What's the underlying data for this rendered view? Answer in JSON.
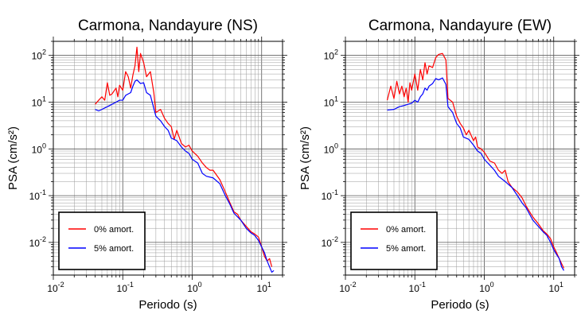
{
  "chart_data": [
    {
      "type": "line",
      "title": "Carmona, Nandayure (NS)",
      "xlabel": "Periodo (s)",
      "ylabel": "PSA (cm/s²)",
      "xscale": "log",
      "yscale": "log",
      "xlim": [
        0.01,
        20
      ],
      "ylim": [
        0.002,
        200
      ],
      "x_ticks": [
        {
          "base": "10",
          "exp": "-2"
        },
        {
          "base": "10",
          "exp": "-1"
        },
        {
          "base": "10",
          "exp": "0"
        },
        {
          "base": "10",
          "exp": "1"
        }
      ],
      "y_ticks": [
        {
          "base": "10",
          "exp": "-2"
        },
        {
          "base": "10",
          "exp": "-1"
        },
        {
          "base": "10",
          "exp": "0"
        },
        {
          "base": "10",
          "exp": "1"
        },
        {
          "base": "10",
          "exp": "2"
        }
      ],
      "grid": true,
      "legend_position": "bottom-left",
      "series": [
        {
          "name": "0% amort.",
          "color": "#ff0000",
          "points": [
            [
              0.04,
              9
            ],
            [
              0.045,
              11
            ],
            [
              0.05,
              13
            ],
            [
              0.055,
              11
            ],
            [
              0.06,
              26
            ],
            [
              0.065,
              14
            ],
            [
              0.07,
              15
            ],
            [
              0.08,
              20
            ],
            [
              0.085,
              13
            ],
            [
              0.09,
              23
            ],
            [
              0.1,
              18
            ],
            [
              0.11,
              45
            ],
            [
              0.12,
              35
            ],
            [
              0.13,
              20
            ],
            [
              0.14,
              38
            ],
            [
              0.15,
              60
            ],
            [
              0.16,
              150
            ],
            [
              0.17,
              45
            ],
            [
              0.18,
              110
            ],
            [
              0.2,
              70
            ],
            [
              0.22,
              35
            ],
            [
              0.25,
              45
            ],
            [
              0.28,
              16
            ],
            [
              0.3,
              6
            ],
            [
              0.35,
              7
            ],
            [
              0.4,
              4.5
            ],
            [
              0.45,
              3.5
            ],
            [
              0.5,
              3
            ],
            [
              0.55,
              1.6
            ],
            [
              0.6,
              2.5
            ],
            [
              0.7,
              1.3
            ],
            [
              0.8,
              1.1
            ],
            [
              0.9,
              1.2
            ],
            [
              1,
              0.9
            ],
            [
              1.2,
              0.7
            ],
            [
              1.4,
              0.5
            ],
            [
              1.6,
              0.4
            ],
            [
              1.8,
              0.35
            ],
            [
              2,
              0.35
            ],
            [
              2.5,
              0.22
            ],
            [
              3,
              0.12
            ],
            [
              3.5,
              0.07
            ],
            [
              4,
              0.045
            ],
            [
              4.5,
              0.04
            ],
            [
              5,
              0.03
            ],
            [
              6,
              0.022
            ],
            [
              7,
              0.017
            ],
            [
              8,
              0.015
            ],
            [
              9,
              0.013
            ],
            [
              10,
              0.008
            ],
            [
              11,
              0.005
            ],
            [
              12,
              0.004
            ],
            [
              13,
              0.0045
            ],
            [
              14,
              0.003
            ]
          ]
        },
        {
          "name": "5% amort.",
          "color": "#0000ff",
          "points": [
            [
              0.04,
              7
            ],
            [
              0.045,
              6.5
            ],
            [
              0.05,
              7
            ],
            [
              0.06,
              8
            ],
            [
              0.07,
              9
            ],
            [
              0.08,
              10
            ],
            [
              0.09,
              11
            ],
            [
              0.1,
              11
            ],
            [
              0.11,
              14
            ],
            [
              0.12,
              15
            ],
            [
              0.13,
              16
            ],
            [
              0.14,
              22
            ],
            [
              0.15,
              28
            ],
            [
              0.16,
              30
            ],
            [
              0.18,
              25
            ],
            [
              0.2,
              26
            ],
            [
              0.22,
              16
            ],
            [
              0.25,
              14
            ],
            [
              0.3,
              5
            ],
            [
              0.35,
              4
            ],
            [
              0.4,
              3
            ],
            [
              0.45,
              2.5
            ],
            [
              0.5,
              1.7
            ],
            [
              0.6,
              1.5
            ],
            [
              0.7,
              1.1
            ],
            [
              0.8,
              0.9
            ],
            [
              0.9,
              0.8
            ],
            [
              1,
              0.6
            ],
            [
              1.2,
              0.5
            ],
            [
              1.4,
              0.3
            ],
            [
              1.6,
              0.26
            ],
            [
              2,
              0.24
            ],
            [
              2.5,
              0.18
            ],
            [
              3,
              0.1
            ],
            [
              3.5,
              0.065
            ],
            [
              4,
              0.042
            ],
            [
              5,
              0.03
            ],
            [
              6,
              0.02
            ],
            [
              7,
              0.016
            ],
            [
              8,
              0.014
            ],
            [
              9,
              0.011
            ],
            [
              10,
              0.008
            ],
            [
              11,
              0.006
            ],
            [
              12,
              0.004
            ],
            [
              13,
              0.003
            ],
            [
              14,
              0.0023
            ],
            [
              15,
              0.0025
            ]
          ]
        }
      ]
    },
    {
      "type": "line",
      "title": "Carmona, Nandayure (EW)",
      "xlabel": "Periodo (s)",
      "ylabel": "PSA (cm/s²)",
      "xscale": "log",
      "yscale": "log",
      "xlim": [
        0.01,
        20
      ],
      "ylim": [
        0.002,
        200
      ],
      "x_ticks": [
        {
          "base": "10",
          "exp": "-2"
        },
        {
          "base": "10",
          "exp": "-1"
        },
        {
          "base": "10",
          "exp": "0"
        },
        {
          "base": "10",
          "exp": "1"
        }
      ],
      "y_ticks": [
        {
          "base": "10",
          "exp": "-2"
        },
        {
          "base": "10",
          "exp": "-1"
        },
        {
          "base": "10",
          "exp": "0"
        },
        {
          "base": "10",
          "exp": "1"
        },
        {
          "base": "10",
          "exp": "2"
        }
      ],
      "grid": true,
      "legend_position": "bottom-left",
      "series": [
        {
          "name": "0% amort.",
          "color": "#ff0000",
          "points": [
            [
              0.04,
              11
            ],
            [
              0.045,
              22
            ],
            [
              0.05,
              12
            ],
            [
              0.055,
              28
            ],
            [
              0.06,
              15
            ],
            [
              0.065,
              22
            ],
            [
              0.07,
              13
            ],
            [
              0.075,
              20
            ],
            [
              0.08,
              10
            ],
            [
              0.085,
              26
            ],
            [
              0.09,
              18
            ],
            [
              0.1,
              40
            ],
            [
              0.11,
              18
            ],
            [
              0.12,
              50
            ],
            [
              0.13,
              30
            ],
            [
              0.14,
              70
            ],
            [
              0.15,
              40
            ],
            [
              0.16,
              60
            ],
            [
              0.18,
              55
            ],
            [
              0.2,
              90
            ],
            [
              0.22,
              105
            ],
            [
              0.25,
              110
            ],
            [
              0.28,
              80
            ],
            [
              0.3,
              12
            ],
            [
              0.35,
              10
            ],
            [
              0.4,
              5
            ],
            [
              0.45,
              3.5
            ],
            [
              0.5,
              2.8
            ],
            [
              0.55,
              2
            ],
            [
              0.6,
              2.5
            ],
            [
              0.7,
              1.5
            ],
            [
              0.75,
              1.8
            ],
            [
              0.8,
              1.1
            ],
            [
              0.9,
              1
            ],
            [
              1,
              0.85
            ],
            [
              1.2,
              0.55
            ],
            [
              1.4,
              0.5
            ],
            [
              1.6,
              0.35
            ],
            [
              1.8,
              0.3
            ],
            [
              2,
              0.35
            ],
            [
              2.2,
              0.2
            ],
            [
              2.5,
              0.15
            ],
            [
              3,
              0.12
            ],
            [
              3.5,
              0.09
            ],
            [
              4,
              0.06
            ],
            [
              5,
              0.035
            ],
            [
              6,
              0.025
            ],
            [
              7,
              0.018
            ],
            [
              8,
              0.015
            ],
            [
              9,
              0.012
            ],
            [
              10,
              0.008
            ],
            [
              11,
              0.006
            ],
            [
              12,
              0.0045
            ],
            [
              13,
              0.0035
            ],
            [
              14,
              0.0028
            ]
          ]
        },
        {
          "name": "5% amort.",
          "color": "#0000ff",
          "points": [
            [
              0.04,
              6.8
            ],
            [
              0.05,
              7
            ],
            [
              0.06,
              8
            ],
            [
              0.07,
              8.5
            ],
            [
              0.08,
              9
            ],
            [
              0.09,
              9.5
            ],
            [
              0.1,
              11
            ],
            [
              0.11,
              10
            ],
            [
              0.12,
              13
            ],
            [
              0.13,
              15
            ],
            [
              0.14,
              20
            ],
            [
              0.15,
              18
            ],
            [
              0.16,
              22
            ],
            [
              0.18,
              25
            ],
            [
              0.2,
              32
            ],
            [
              0.22,
              30
            ],
            [
              0.25,
              33
            ],
            [
              0.28,
              24
            ],
            [
              0.3,
              8
            ],
            [
              0.35,
              6
            ],
            [
              0.4,
              3.5
            ],
            [
              0.45,
              2.8
            ],
            [
              0.5,
              1.8
            ],
            [
              0.6,
              1.6
            ],
            [
              0.7,
              1.2
            ],
            [
              0.8,
              0.9
            ],
            [
              0.9,
              0.8
            ],
            [
              1,
              0.6
            ],
            [
              1.2,
              0.45
            ],
            [
              1.4,
              0.35
            ],
            [
              1.6,
              0.26
            ],
            [
              2,
              0.2
            ],
            [
              2.5,
              0.15
            ],
            [
              3,
              0.1
            ],
            [
              3.5,
              0.07
            ],
            [
              4,
              0.055
            ],
            [
              5,
              0.03
            ],
            [
              6,
              0.022
            ],
            [
              7,
              0.017
            ],
            [
              8,
              0.014
            ],
            [
              9,
              0.01
            ],
            [
              10,
              0.007
            ],
            [
              11,
              0.0055
            ],
            [
              12,
              0.0045
            ],
            [
              13,
              0.003
            ],
            [
              14,
              0.0025
            ]
          ]
        }
      ]
    }
  ]
}
